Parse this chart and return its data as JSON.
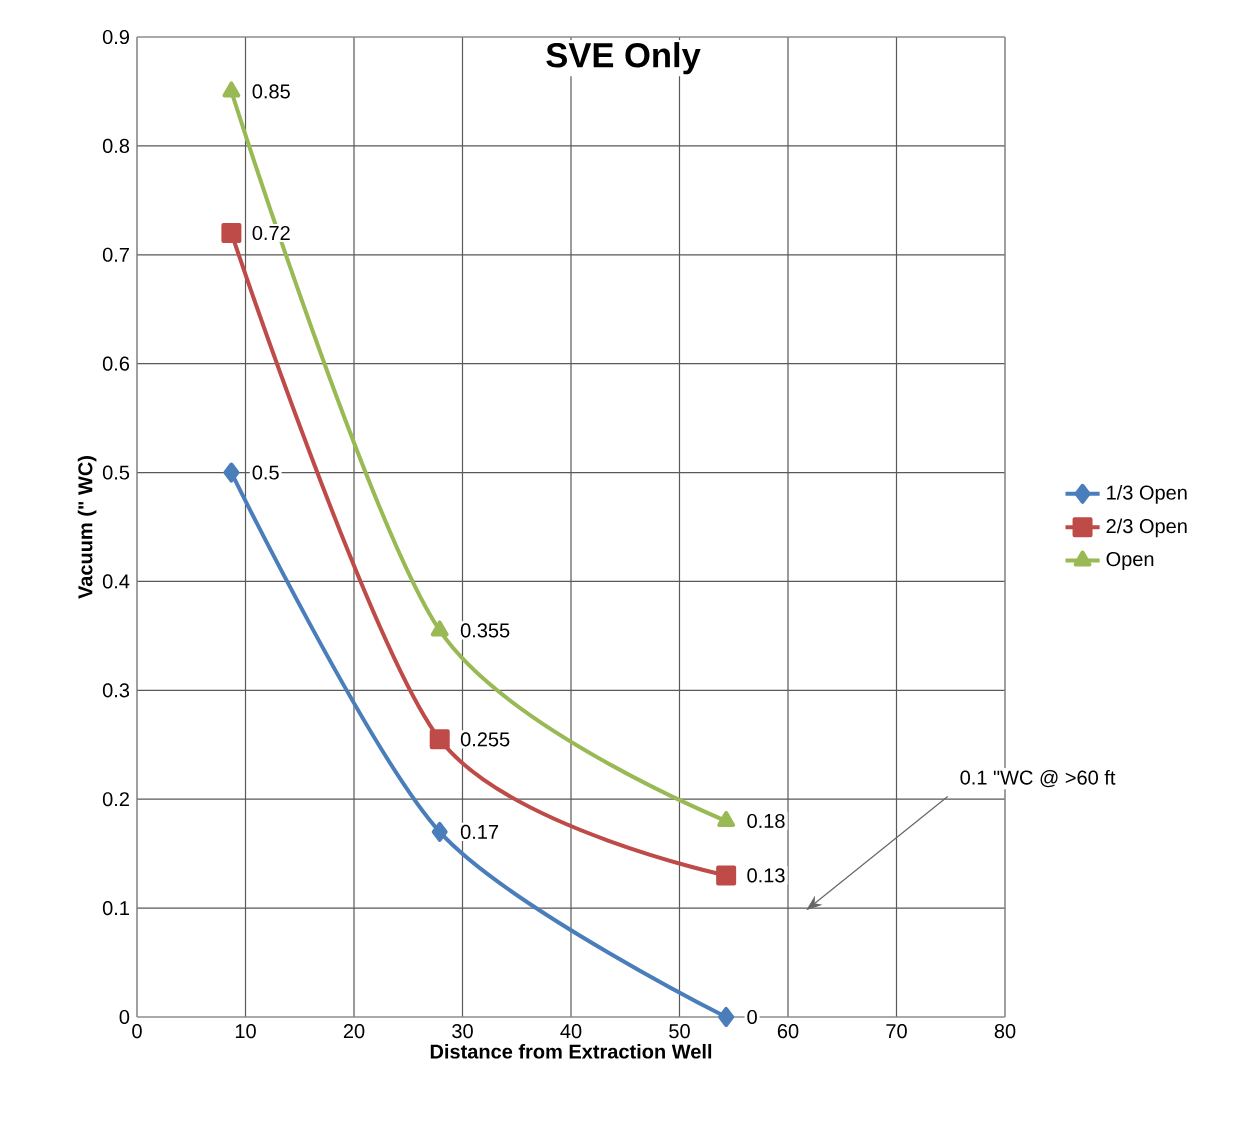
{
  "chart_data": {
    "type": "line",
    "title": "SVE Only",
    "xlabel": "Distance from Extraction Well",
    "ylabel": "Vacuum (\" WC)",
    "x": [
      8.7,
      27.9,
      54.3
    ],
    "series": [
      {
        "name": "1/3 Open",
        "color": "#4a7ebb",
        "marker": "diamond",
        "values": [
          0.5,
          0.17,
          0
        ]
      },
      {
        "name": "2/3 Open",
        "color": "#be4b48",
        "marker": "square",
        "values": [
          0.72,
          0.255,
          0.13
        ]
      },
      {
        "name": "Open",
        "color": "#98b954",
        "marker": "triangle",
        "values": [
          0.85,
          0.355,
          0.18
        ]
      }
    ],
    "xlim": [
      0,
      80
    ],
    "xticks": [
      0,
      10,
      20,
      30,
      40,
      50,
      60,
      70,
      80
    ],
    "ylim": [
      0,
      0.9
    ],
    "yticks": [
      0,
      0.1,
      0.2,
      0.3,
      0.4,
      0.5,
      0.6,
      0.7,
      0.8,
      0.9
    ],
    "grid": true,
    "legend": "right",
    "data_labels": true,
    "line_style": "solid",
    "annotations": [
      "0.1 \"WC @ >60 ft"
    ]
  }
}
